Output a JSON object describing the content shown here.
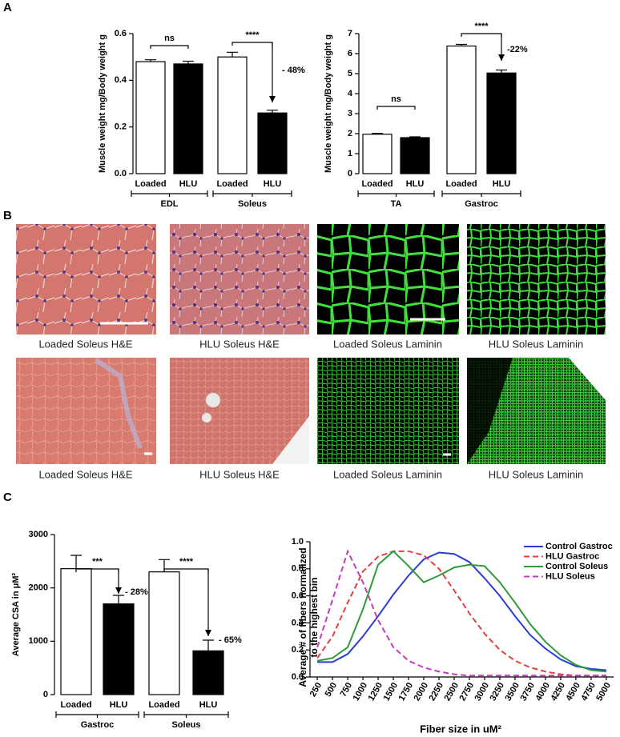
{
  "panel_labels": [
    "A",
    "B",
    "C"
  ],
  "chart_data": [
    {
      "type": "bar",
      "y_label": "Muscle weight mg/Body weight g",
      "categories": [
        "Loaded",
        "HLU",
        "Loaded",
        "HLU"
      ],
      "groups": [
        "EDL",
        "Soleus"
      ],
      "values": [
        0.48,
        0.47,
        0.5,
        0.26
      ],
      "errors": [
        0.008,
        0.012,
        0.02,
        0.012
      ],
      "colors": [
        "#ffffff",
        "#000000",
        "#ffffff",
        "#000000"
      ],
      "ylim": [
        0,
        0.6
      ],
      "yticks": [
        {
          "value": 0,
          "label": "0.0"
        },
        0.2,
        0.4,
        0.6
      ],
      "annotations": [
        "ns",
        "****",
        "- 48%"
      ]
    },
    {
      "type": "bar",
      "y_label": "Muscle weight mg/Body weight g",
      "categories": [
        "Loaded",
        "HLU",
        "Loaded",
        "HLU"
      ],
      "groups": [
        "TA",
        "Gastroc"
      ],
      "values": [
        1.97,
        1.8,
        6.38,
        5.03
      ],
      "errors": [
        0.04,
        0.04,
        0.08,
        0.15
      ],
      "colors": [
        "#ffffff",
        "#000000",
        "#ffffff",
        "#000000"
      ],
      "ylim": [
        0,
        7
      ],
      "yticks": [
        0,
        1,
        2,
        3,
        4,
        5,
        6,
        7
      ],
      "annotations": [
        "ns",
        "****",
        "-22%"
      ]
    },
    {
      "type": "bar",
      "y_label": "Average CSA in μM²",
      "categories": [
        "Loaded",
        "HLU",
        "Loaded",
        "HLU"
      ],
      "groups": [
        "Gastroc",
        "Soleus"
      ],
      "values": [
        2360,
        1700,
        2300,
        820
      ],
      "errors": [
        250,
        160,
        230,
        200
      ],
      "colors": [
        "#ffffff",
        "#000000",
        "#ffffff",
        "#000000"
      ],
      "ylim": [
        0,
        3000
      ],
      "yticks": [
        0,
        1000,
        2000,
        3000
      ],
      "annotations": [
        "***",
        "- 28%",
        "****",
        "- 65%"
      ]
    },
    {
      "type": "line",
      "y_label": [
        "Average # of fibers normalized",
        "to the highest bin"
      ],
      "x_label": "Fiber size in uM²",
      "x": [
        250,
        500,
        750,
        1000,
        1250,
        1500,
        1750,
        2000,
        2250,
        2500,
        2750,
        3000,
        3250,
        3500,
        3750,
        4000,
        4250,
        4500,
        4750,
        5000
      ],
      "xlim": [
        130,
        5120
      ],
      "xticks": [
        250,
        500,
        750,
        1000,
        1250,
        1500,
        1750,
        2000,
        2250,
        2500,
        2750,
        3000,
        3250,
        3500,
        3750,
        4000,
        4250,
        4500,
        4750,
        5000
      ],
      "ylim": [
        0,
        1
      ],
      "yticks": [
        {
          "value": 0,
          "label": "0.0"
        },
        0.2,
        0.4,
        0.6,
        0.8,
        {
          "value": 1,
          "label": "1.0"
        }
      ],
      "legend": "upper right",
      "series": [
        {
          "name": "Control Gastroc",
          "color": "#2a3bd6",
          "dashed": false,
          "values": [
            0.11,
            0.11,
            0.17,
            0.3,
            0.45,
            0.61,
            0.75,
            0.87,
            0.92,
            0.91,
            0.85,
            0.73,
            0.6,
            0.45,
            0.31,
            0.21,
            0.13,
            0.08,
            0.06,
            0.05
          ]
        },
        {
          "name": "HLU Gastroc",
          "color": "#e53e3e",
          "dashed": true,
          "values": [
            0.14,
            0.3,
            0.55,
            0.78,
            0.89,
            0.93,
            0.93,
            0.9,
            0.8,
            0.64,
            0.47,
            0.32,
            0.2,
            0.12,
            0.07,
            0.04,
            0.02,
            0.01,
            0.01,
            0.01
          ]
        },
        {
          "name": "Control Soleus",
          "color": "#2f9a3b",
          "dashed": false,
          "values": [
            0.12,
            0.14,
            0.22,
            0.5,
            0.83,
            0.93,
            0.82,
            0.7,
            0.75,
            0.81,
            0.83,
            0.82,
            0.7,
            0.55,
            0.39,
            0.26,
            0.16,
            0.09,
            0.05,
            0.04
          ]
        },
        {
          "name": "HLU Soleus",
          "color": "#c23cbc",
          "dashed": true,
          "values": [
            0.22,
            0.57,
            0.93,
            0.7,
            0.42,
            0.22,
            0.12,
            0.07,
            0.04,
            0.02,
            0.01,
            0.01,
            0.01,
            0.01,
            0.01,
            0.01,
            0.01,
            0.01,
            0.01,
            0.01
          ]
        }
      ]
    }
  ],
  "images": [
    {
      "caption": "Loaded Soleus H&E"
    },
    {
      "caption": "HLU Soleus H&E"
    },
    {
      "caption": "Loaded Soleus Laminin"
    },
    {
      "caption": "HLU Soleus Laminin"
    },
    {
      "caption": "Loaded Soleus H&E"
    },
    {
      "caption": "HLU Soleus H&E"
    },
    {
      "caption": "Loaded Soleus Laminin"
    },
    {
      "caption": "HLU Soleus Laminin"
    }
  ]
}
